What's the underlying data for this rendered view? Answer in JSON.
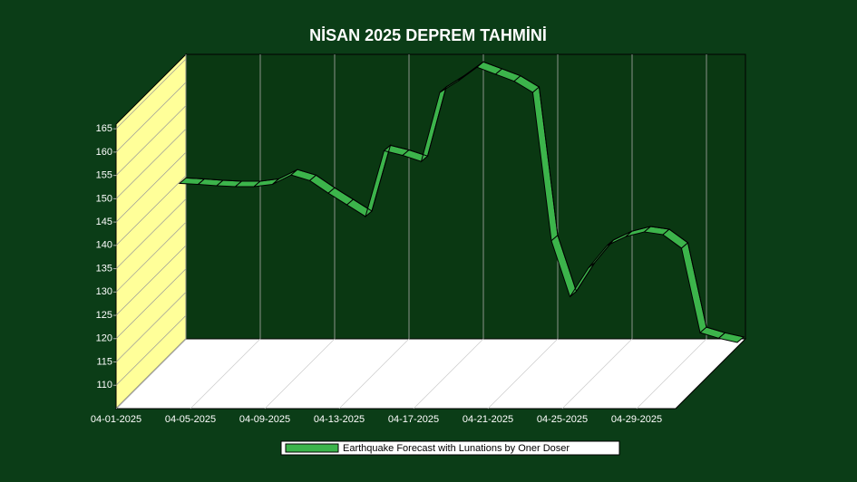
{
  "chart_data": {
    "type": "line",
    "title": "NİSAN 2025 DEPREM TAHMİNİ",
    "categories": [
      "04-01-2025",
      null,
      null,
      null,
      "04-05-2025",
      null,
      null,
      null,
      "04-09-2025",
      null,
      null,
      null,
      "04-13-2025",
      null,
      null,
      null,
      "04-17-2025",
      null,
      null,
      null,
      "04-21-2025",
      null,
      null,
      null,
      "04-25-2025",
      null,
      null,
      null,
      "04-29-2025",
      null,
      null
    ],
    "series": [
      {
        "name": "Earthquake Forecast with Lunations by Oner Doser",
        "color": "#3cb44b",
        "values": [
          139.5,
          139.3,
          139,
          138.8,
          138.8,
          139.3,
          141.3,
          140.1,
          137.4,
          134.9,
          132.4,
          146.5,
          145.5,
          144.2,
          159,
          161.5,
          164.4,
          162.9,
          161.4,
          159,
          127.2,
          115.2,
          121.4,
          126.2,
          128.1,
          129.1,
          128.5,
          125.6,
          107.5,
          106.3,
          105.4
        ]
      }
    ],
    "ylim": [
      105,
      166
    ],
    "yticks": [
      110,
      115,
      120,
      125,
      130,
      135,
      140,
      145,
      150,
      155,
      160,
      165
    ],
    "grid": true,
    "legend": "bottom"
  }
}
